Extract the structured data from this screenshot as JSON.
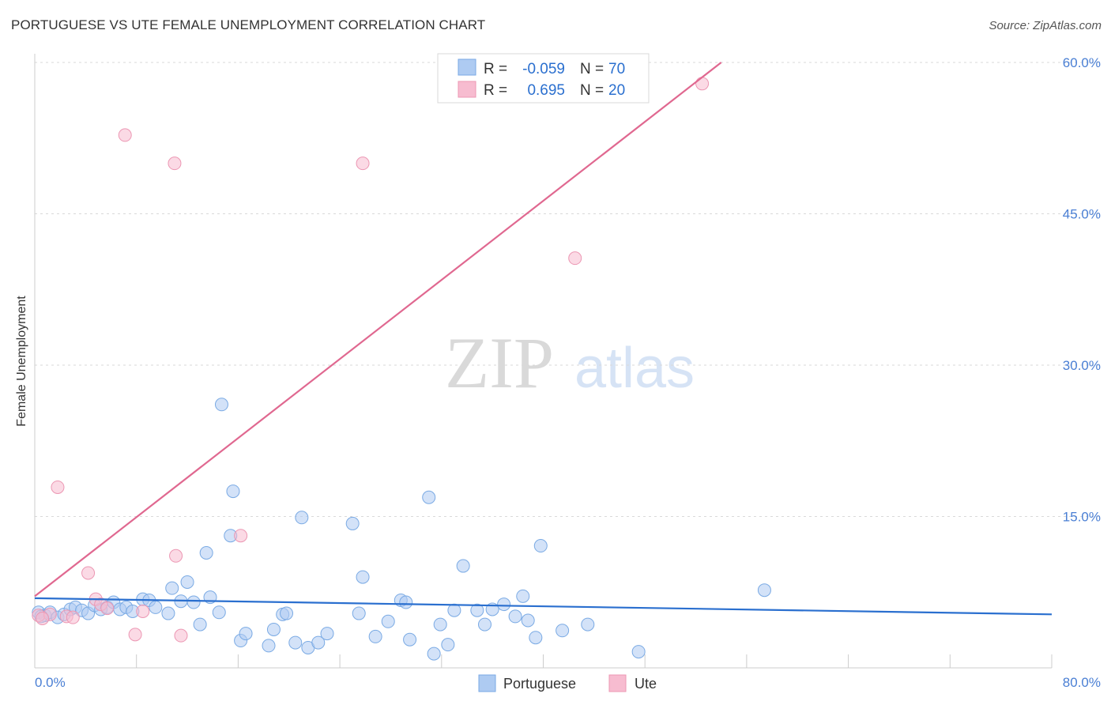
{
  "title": "PORTUGUESE VS UTE FEMALE UNEMPLOYMENT CORRELATION CHART",
  "source": "Source: ZipAtlas.com",
  "colors": {
    "portuguese_fill": "#aecbf2",
    "portuguese_stroke": "#7aaae4",
    "portuguese_line": "#2a6fcf",
    "ute_fill": "#f7bcd0",
    "ute_stroke": "#ec97b3",
    "ute_line": "#e06890",
    "tick_text": "#4a7fd4",
    "grid": "#d9d9d9"
  },
  "legend": {
    "rows": [
      {
        "r_label": "R =",
        "r_value": "-0.059",
        "n_label": "N =",
        "n_value": "70"
      },
      {
        "r_label": "R =",
        "r_value": "0.695",
        "n_label": "N =",
        "n_value": "20"
      }
    ]
  },
  "bottom_legend": [
    "Portuguese",
    "Ute"
  ],
  "watermark": {
    "zip": "ZIP",
    "atlas": "atlas"
  },
  "chart_data": {
    "type": "scatter",
    "title": "PORTUGUESE VS UTE FEMALE UNEMPLOYMENT CORRELATION CHART",
    "xlabel": "",
    "ylabel": "Female Unemployment",
    "xlim": [
      0,
      80
    ],
    "ylim": [
      0,
      60
    ],
    "x_tick_labels": [
      "0.0%",
      "80.0%"
    ],
    "y_ticks": [
      15,
      30,
      45,
      60
    ],
    "y_tick_labels": [
      "15.0%",
      "30.0%",
      "45.0%",
      "60.0%"
    ],
    "grid": true,
    "legend_position": "top-center",
    "series": [
      {
        "name": "Portuguese",
        "r": -0.059,
        "n": 70,
        "trendline": {
          "x": [
            0,
            80
          ],
          "y": [
            6.9,
            5.3
          ]
        },
        "points": [
          [
            0.3,
            5.5
          ],
          [
            0.8,
            5.2
          ],
          [
            1.2,
            5.5
          ],
          [
            1.8,
            5.0
          ],
          [
            2.3,
            5.3
          ],
          [
            2.8,
            5.8
          ],
          [
            3.2,
            6.0
          ],
          [
            3.7,
            5.7
          ],
          [
            4.2,
            5.4
          ],
          [
            4.7,
            6.2
          ],
          [
            5.2,
            5.8
          ],
          [
            5.7,
            6.0
          ],
          [
            6.2,
            6.5
          ],
          [
            6.7,
            5.8
          ],
          [
            7.2,
            6.0
          ],
          [
            7.7,
            5.6
          ],
          [
            8.5,
            6.8
          ],
          [
            9.0,
            6.7
          ],
          [
            9.5,
            6.0
          ],
          [
            10.5,
            5.4
          ],
          [
            10.8,
            7.9
          ],
          [
            11.5,
            6.6
          ],
          [
            12.0,
            8.5
          ],
          [
            12.5,
            6.5
          ],
          [
            13.0,
            4.3
          ],
          [
            13.5,
            11.4
          ],
          [
            13.8,
            7.0
          ],
          [
            14.5,
            5.5
          ],
          [
            14.7,
            26.1
          ],
          [
            15.4,
            13.1
          ],
          [
            15.6,
            17.5
          ],
          [
            16.2,
            2.7
          ],
          [
            16.6,
            3.4
          ],
          [
            18.4,
            2.2
          ],
          [
            18.8,
            3.8
          ],
          [
            19.5,
            5.3
          ],
          [
            19.8,
            5.4
          ],
          [
            20.5,
            2.5
          ],
          [
            21.0,
            14.9
          ],
          [
            21.5,
            2.0
          ],
          [
            22.3,
            2.5
          ],
          [
            23.0,
            3.4
          ],
          [
            25.0,
            14.3
          ],
          [
            25.5,
            5.4
          ],
          [
            25.8,
            9.0
          ],
          [
            26.8,
            3.1
          ],
          [
            27.8,
            4.6
          ],
          [
            28.8,
            6.7
          ],
          [
            29.2,
            6.5
          ],
          [
            29.5,
            2.8
          ],
          [
            31.0,
            16.9
          ],
          [
            31.4,
            1.4
          ],
          [
            31.9,
            4.3
          ],
          [
            32.5,
            2.3
          ],
          [
            33.0,
            5.7
          ],
          [
            33.7,
            10.1
          ],
          [
            34.8,
            5.7
          ],
          [
            35.4,
            4.3
          ],
          [
            36.0,
            5.8
          ],
          [
            36.9,
            6.3
          ],
          [
            37.8,
            5.1
          ],
          [
            38.4,
            7.1
          ],
          [
            38.8,
            4.7
          ],
          [
            39.4,
            3.0
          ],
          [
            39.8,
            12.1
          ],
          [
            41.5,
            3.7
          ],
          [
            43.5,
            4.3
          ],
          [
            47.5,
            1.6
          ],
          [
            57.4,
            7.7
          ],
          [
            0.5,
            5.1
          ]
        ]
      },
      {
        "name": "Ute",
        "r": 0.695,
        "n": 20,
        "trendline": {
          "x": [
            0,
            54
          ],
          "y": [
            7.1,
            60.0
          ]
        },
        "points": [
          [
            0.3,
            5.2
          ],
          [
            1.2,
            5.3
          ],
          [
            1.8,
            17.9
          ],
          [
            2.5,
            5.1
          ],
          [
            3.0,
            5.0
          ],
          [
            4.2,
            9.4
          ],
          [
            4.8,
            6.8
          ],
          [
            5.2,
            6.3
          ],
          [
            5.7,
            5.9
          ],
          [
            7.1,
            52.8
          ],
          [
            7.9,
            3.3
          ],
          [
            8.5,
            5.6
          ],
          [
            11.0,
            50.0
          ],
          [
            11.1,
            11.1
          ],
          [
            11.5,
            3.2
          ],
          [
            16.2,
            13.1
          ],
          [
            25.8,
            50.0
          ],
          [
            42.5,
            40.6
          ],
          [
            52.5,
            57.9
          ],
          [
            0.6,
            4.9
          ]
        ]
      }
    ]
  }
}
